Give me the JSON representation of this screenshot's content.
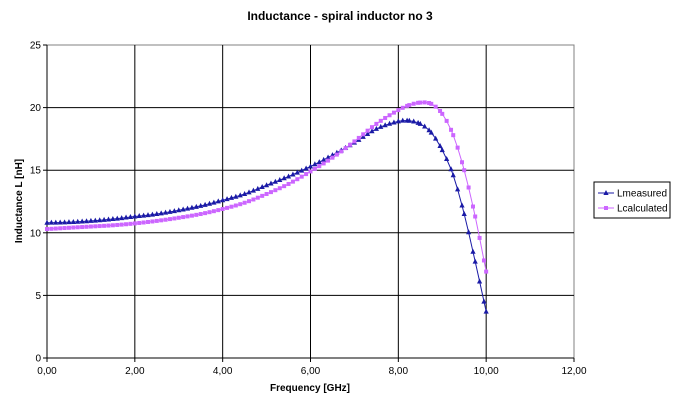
{
  "chart_data": {
    "type": "line",
    "title": "Inductance - spiral inductor no 3",
    "xlabel": "Frequency [GHz]",
    "ylabel": "Inductance L [nH]",
    "xlim": [
      0,
      12
    ],
    "ylim": [
      0,
      25
    ],
    "x_ticks": [
      0,
      2,
      4,
      6,
      8,
      10,
      12
    ],
    "x_tick_labels": [
      "0,00",
      "2,00",
      "4,00",
      "6,00",
      "8,00",
      "10,00",
      "12,00"
    ],
    "y_ticks": [
      0,
      5,
      10,
      15,
      20,
      25
    ],
    "y_tick_labels": [
      "0",
      "5",
      "10",
      "15",
      "20",
      "25"
    ],
    "grid": true,
    "legend_position": "right",
    "series": [
      {
        "name": "Lmeasured",
        "color": "#1a1aa6",
        "marker": "triangle",
        "x": [
          0,
          0.5,
          1.0,
          1.5,
          2.0,
          2.5,
          3.0,
          3.5,
          4.0,
          4.5,
          5.0,
          5.5,
          6.0,
          6.5,
          7.0,
          7.5,
          8.0,
          8.25,
          8.5,
          8.75,
          9.0,
          9.25,
          9.5,
          9.75,
          10.0
        ],
        "y": [
          10.8,
          10.85,
          10.95,
          11.1,
          11.3,
          11.5,
          11.8,
          12.15,
          12.6,
          13.1,
          13.8,
          14.5,
          15.3,
          16.2,
          17.2,
          18.3,
          18.9,
          18.95,
          18.7,
          18.0,
          16.6,
          14.6,
          11.5,
          7.7,
          3.7
        ]
      },
      {
        "name": "Lcalculated",
        "color": "#cc66ff",
        "marker": "square",
        "x": [
          0,
          0.5,
          1.0,
          1.5,
          2.0,
          2.5,
          3.0,
          3.5,
          4.0,
          4.5,
          5.0,
          5.5,
          6.0,
          6.5,
          7.0,
          7.5,
          8.0,
          8.25,
          8.5,
          8.75,
          9.0,
          9.25,
          9.5,
          9.75,
          10.0
        ],
        "y": [
          10.3,
          10.4,
          10.5,
          10.6,
          10.75,
          10.95,
          11.2,
          11.5,
          11.9,
          12.4,
          13.1,
          13.9,
          14.9,
          16.0,
          17.3,
          18.7,
          19.8,
          20.2,
          20.4,
          20.3,
          19.5,
          17.8,
          15.0,
          11.3,
          6.9
        ]
      }
    ]
  }
}
